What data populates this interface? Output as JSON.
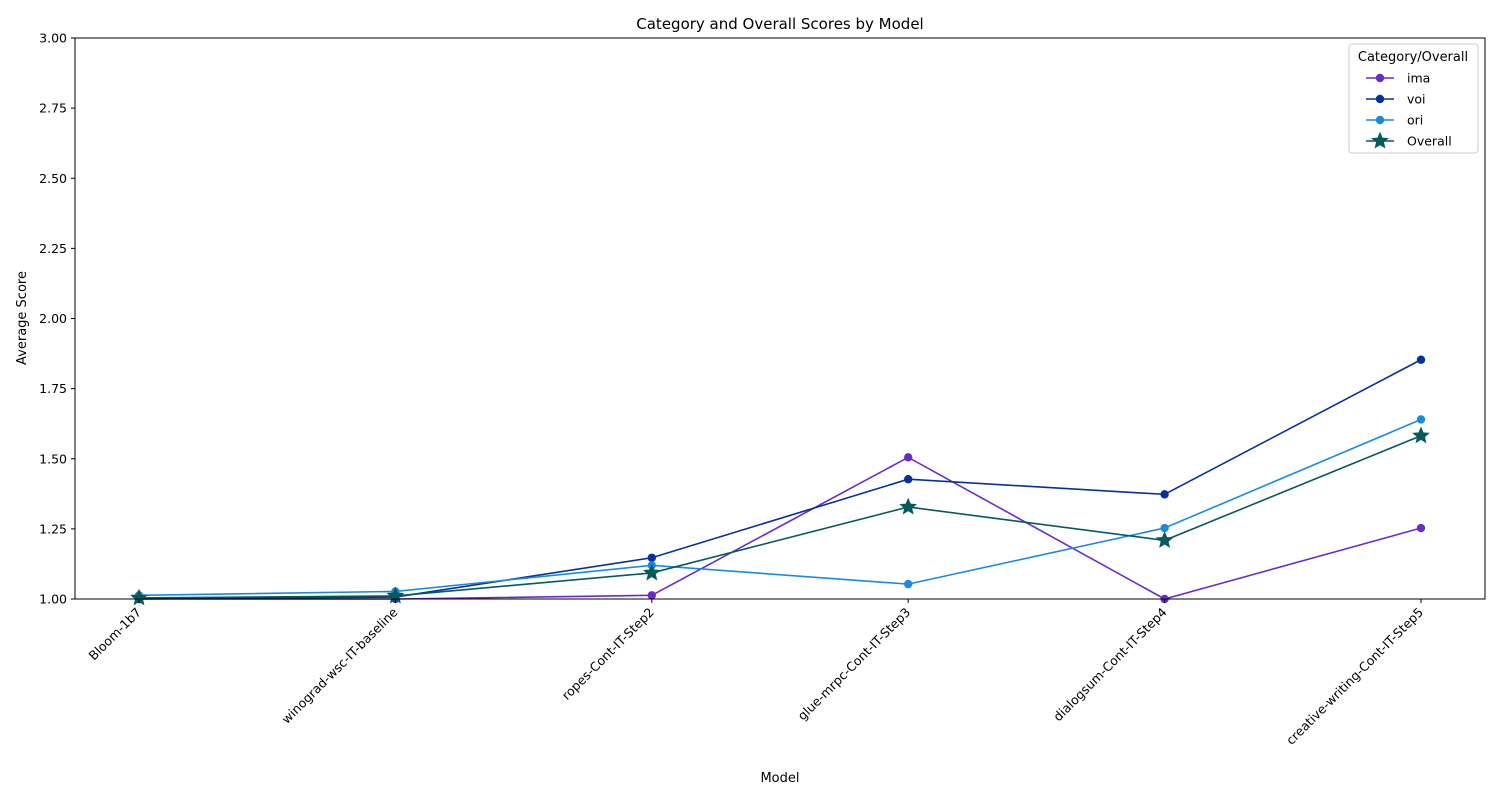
{
  "chart_data": {
    "type": "line",
    "title": "Category and Overall Scores by Model",
    "xlabel": "Model",
    "ylabel": "Average Score",
    "ylim": [
      1.0,
      3.0
    ],
    "yticks": [
      "1.00",
      "1.25",
      "1.50",
      "1.75",
      "2.00",
      "2.25",
      "2.50",
      "2.75",
      "3.00"
    ],
    "categories": [
      "Bloom-1b7",
      "winograd-wsc-IT-baseline",
      "ropes-Cont-IT-Step2",
      "glue-mrpc-Cont-IT-Step3",
      "dialogsum-Cont-IT-Step4",
      "creative-writing-Cont-IT-Step5"
    ],
    "grid": false,
    "legend": {
      "title": "Category/Overall",
      "placement": "top-right"
    },
    "series": [
      {
        "name": "ima",
        "color": "#6a2bc9",
        "marker": "circle",
        "values": [
          1.0,
          1.0,
          1.013,
          1.505,
          1.0,
          1.253
        ]
      },
      {
        "name": "voi",
        "color": "#07309b",
        "marker": "circle",
        "values": [
          1.0,
          1.007,
          1.147,
          1.427,
          1.373,
          1.853
        ]
      },
      {
        "name": "ori",
        "color": "#1a8ae0",
        "marker": "circle",
        "values": [
          1.013,
          1.027,
          1.12,
          1.053,
          1.253,
          1.64
        ]
      },
      {
        "name": "Overall",
        "color": "#065a5c",
        "marker": "star",
        "values": [
          1.004,
          1.011,
          1.093,
          1.328,
          1.209,
          1.582
        ]
      }
    ]
  }
}
